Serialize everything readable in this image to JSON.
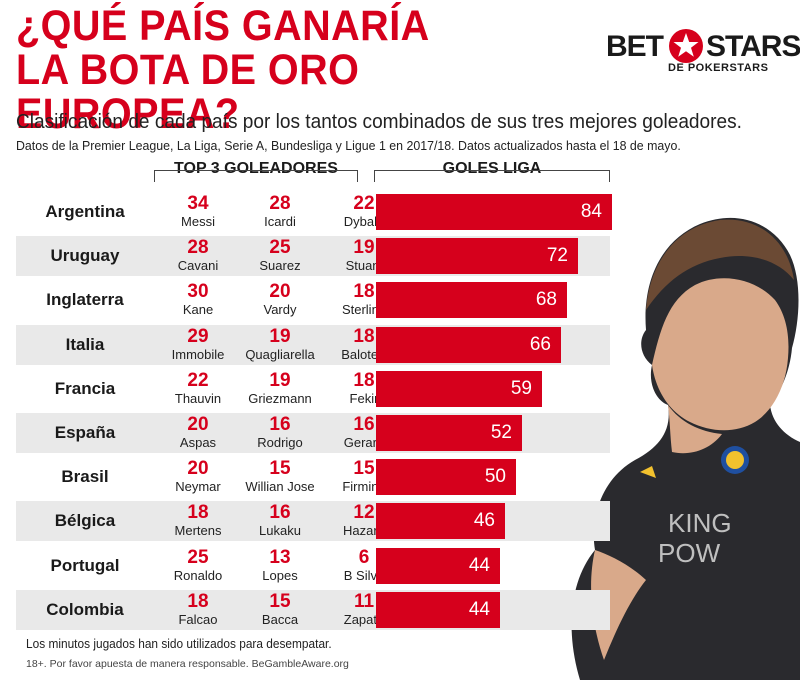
{
  "header": {
    "title_line1": "¿QUÉ PAÍS GANARÍA",
    "title_line2": "LA BOTA DE ORO EUROPEA?",
    "subtitle": "Clasificación de cada país por los tantos combinados de sus tres mejores goleadores.",
    "note": "Datos de la Premier League, La Liga, Serie A, Bundesliga y Ligue 1 en 2017/18. Datos actualizados hasta el 18 de mayo."
  },
  "logo": {
    "word1": "BET",
    "word2": "STARS",
    "sub": "DE POKERSTARS",
    "star_color": "#d6001c"
  },
  "columns": {
    "top3": "TOP 3 GOLEADORES",
    "league": "GOLES LIGA"
  },
  "colors": {
    "accent": "#d6001c",
    "shade": "#e9e9e9"
  },
  "chart_data": {
    "type": "bar",
    "orientation": "horizontal",
    "title": "¿QUÉ PAÍS GANARÍA LA BOTA DE ORO EUROPEA?",
    "categories": [
      "Argentina",
      "Uruguay",
      "Inglaterra",
      "Italia",
      "Francia",
      "España",
      "Brasil",
      "Bélgica",
      "Portugal",
      "Colombia"
    ],
    "values": [
      84,
      72,
      68,
      66,
      59,
      52,
      50,
      46,
      44,
      44
    ],
    "value_label": "GOLES LIGA",
    "rows": [
      {
        "country": "Argentina",
        "total": 84,
        "players": [
          {
            "goals": 34,
            "name": "Messi"
          },
          {
            "goals": 28,
            "name": "Icardi"
          },
          {
            "goals": 22,
            "name": "Dybala"
          }
        ]
      },
      {
        "country": "Uruguay",
        "total": 72,
        "players": [
          {
            "goals": 28,
            "name": "Cavani"
          },
          {
            "goals": 25,
            "name": "Suarez"
          },
          {
            "goals": 19,
            "name": "Stuani"
          }
        ]
      },
      {
        "country": "Inglaterra",
        "total": 68,
        "players": [
          {
            "goals": 30,
            "name": "Kane"
          },
          {
            "goals": 20,
            "name": "Vardy"
          },
          {
            "goals": 18,
            "name": "Sterling"
          }
        ]
      },
      {
        "country": "Italia",
        "total": 66,
        "players": [
          {
            "goals": 29,
            "name": "Immobile"
          },
          {
            "goals": 19,
            "name": "Quagliarella"
          },
          {
            "goals": 18,
            "name": "Balotelli"
          }
        ]
      },
      {
        "country": "Francia",
        "total": 59,
        "players": [
          {
            "goals": 22,
            "name": "Thauvin"
          },
          {
            "goals": 19,
            "name": "Griezmann"
          },
          {
            "goals": 18,
            "name": "Fekir"
          }
        ]
      },
      {
        "country": "España",
        "total": 52,
        "players": [
          {
            "goals": 20,
            "name": "Aspas"
          },
          {
            "goals": 16,
            "name": "Rodrigo"
          },
          {
            "goals": 16,
            "name": "Gerard"
          }
        ]
      },
      {
        "country": "Brasil",
        "total": 50,
        "players": [
          {
            "goals": 20,
            "name": "Neymar"
          },
          {
            "goals": 15,
            "name": "Willian Jose"
          },
          {
            "goals": 15,
            "name": "Firmino"
          }
        ]
      },
      {
        "country": "Bélgica",
        "total": 46,
        "players": [
          {
            "goals": 18,
            "name": "Mertens"
          },
          {
            "goals": 16,
            "name": "Lukaku"
          },
          {
            "goals": 12,
            "name": "Hazard"
          }
        ]
      },
      {
        "country": "Portugal",
        "total": 44,
        "players": [
          {
            "goals": 25,
            "name": "Ronaldo"
          },
          {
            "goals": 13,
            "name": "Lopes"
          },
          {
            "goals": 6,
            "name": "B Silva"
          }
        ]
      },
      {
        "country": "Colombia",
        "total": 44,
        "players": [
          {
            "goals": 18,
            "name": "Falcao"
          },
          {
            "goals": 15,
            "name": "Bacca"
          },
          {
            "goals": 11,
            "name": "Zapata"
          }
        ]
      }
    ],
    "xlim": [
      0,
      84
    ],
    "grid": false,
    "legend": "none"
  },
  "footer": {
    "footnote": "Los minutos jugados han sido utilizados para desempatar.",
    "disclaimer": "18+. Por favor apuesta de manera responsable. BeGambleAware.org"
  },
  "photo": {
    "shirt_text_line1": "KING",
    "shirt_text_line2": "POW"
  }
}
